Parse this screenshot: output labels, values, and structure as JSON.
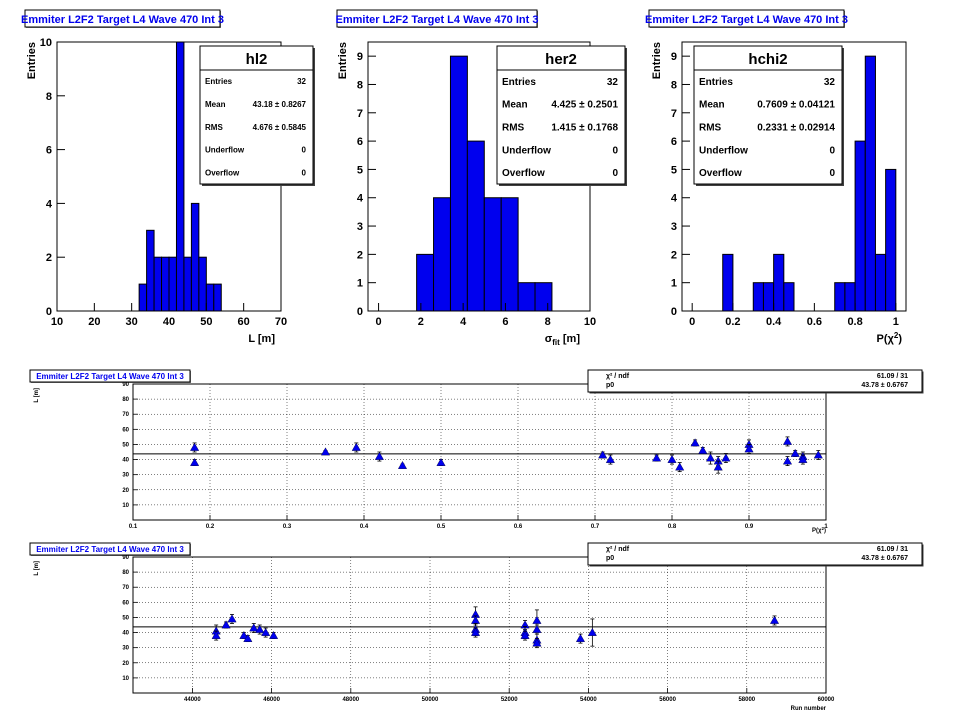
{
  "chart_data": [
    {
      "type": "bar",
      "panel_title": "Emmiter L2F2 Target L4 Wave 470 Int 3",
      "stats": {
        "name": "hl2",
        "rows": [
          {
            "label": "Entries",
            "value": "32"
          },
          {
            "label": "Mean",
            "value": "43.18 ± 0.8267"
          },
          {
            "label": "RMS",
            "value": "4.676 ± 0.5845"
          },
          {
            "label": "Underflow",
            "value": "0"
          },
          {
            "label": "Overflow",
            "value": "0"
          }
        ]
      },
      "xlabel": "L [m]",
      "ylabel": "Entries",
      "xlim": [
        10,
        70
      ],
      "ylim": [
        0,
        10
      ],
      "xticks": [
        "10",
        "20",
        "30",
        "40",
        "50",
        "60",
        "70"
      ],
      "yticks": [
        "0",
        "2",
        "4",
        "6",
        "8",
        "10"
      ],
      "bin_width": 2,
      "bins": [
        {
          "x": 32,
          "count": 1
        },
        {
          "x": 34,
          "count": 3
        },
        {
          "x": 36,
          "count": 2
        },
        {
          "x": 38,
          "count": 2
        },
        {
          "x": 40,
          "count": 2
        },
        {
          "x": 42,
          "count": 10
        },
        {
          "x": 44,
          "count": 2
        },
        {
          "x": 46,
          "count": 4
        },
        {
          "x": 48,
          "count": 2
        },
        {
          "x": 50,
          "count": 1
        },
        {
          "x": 52,
          "count": 1
        }
      ]
    },
    {
      "type": "bar",
      "panel_title": "Emmiter L2F2 Target L4 Wave 470 Int 3",
      "stats": {
        "name": "her2",
        "rows": [
          {
            "label": "Entries",
            "value": "32"
          },
          {
            "label": "Mean",
            "value": "4.425 ± 0.2501"
          },
          {
            "label": "RMS",
            "value": "1.415 ± 0.1768"
          },
          {
            "label": "Underflow",
            "value": "0"
          },
          {
            "label": "Overflow",
            "value": "0"
          }
        ]
      },
      "xlabel": "σfit [m]",
      "ylabel": "Entries",
      "xlim": [
        -0.5,
        10
      ],
      "ylim": [
        0,
        9.5
      ],
      "xticks": [
        "0",
        "2",
        "4",
        "6",
        "8",
        "10"
      ],
      "yticks": [
        "0",
        "1",
        "2",
        "3",
        "4",
        "5",
        "6",
        "7",
        "8",
        "9"
      ],
      "bin_width": 0.8,
      "bins": [
        {
          "x": 1.8,
          "count": 2
        },
        {
          "x": 2.6,
          "count": 4
        },
        {
          "x": 3.4,
          "count": 9
        },
        {
          "x": 4.2,
          "count": 6
        },
        {
          "x": 5.0,
          "count": 4
        },
        {
          "x": 5.8,
          "count": 4
        },
        {
          "x": 6.6,
          "count": 1
        },
        {
          "x": 7.4,
          "count": 1
        }
      ]
    },
    {
      "type": "bar",
      "panel_title": "Emmiter L2F2 Target L4 Wave 470 Int 3",
      "stats": {
        "name": "hchi2",
        "rows": [
          {
            "label": "Entries",
            "value": "32"
          },
          {
            "label": "Mean",
            "value": "0.7609 ± 0.04121"
          },
          {
            "label": "RMS",
            "value": "0.2331 ± 0.02914"
          },
          {
            "label": "Underflow",
            "value": "0"
          },
          {
            "label": "Overflow",
            "value": "0"
          }
        ]
      },
      "xlabel": "P(χ²)",
      "ylabel": "Entries",
      "xlim": [
        -0.05,
        1.05
      ],
      "ylim": [
        0,
        9.5
      ],
      "xticks": [
        "0",
        "0.2",
        "0.4",
        "0.6",
        "0.8",
        "1"
      ],
      "yticks": [
        "0",
        "1",
        "2",
        "3",
        "4",
        "5",
        "6",
        "7",
        "8",
        "9"
      ],
      "bin_width": 0.05,
      "bins": [
        {
          "x": 0.15,
          "count": 2
        },
        {
          "x": 0.3,
          "count": 1
        },
        {
          "x": 0.35,
          "count": 1
        },
        {
          "x": 0.4,
          "count": 2
        },
        {
          "x": 0.45,
          "count": 1
        },
        {
          "x": 0.7,
          "count": 1
        },
        {
          "x": 0.75,
          "count": 1
        },
        {
          "x": 0.8,
          "count": 6
        },
        {
          "x": 0.85,
          "count": 9
        },
        {
          "x": 0.9,
          "count": 2
        },
        {
          "x": 0.95,
          "count": 5
        }
      ]
    },
    {
      "type": "scatter",
      "panel_title": "Emmiter L2F2 Target L4 Wave 470 Int 3",
      "fit": {
        "rows": [
          {
            "label": "χ² / ndf",
            "value": "61.09 / 31"
          },
          {
            "label": "p0",
            "value": "43.78 ± 0.6767"
          }
        ],
        "p0": 43.78
      },
      "xlabel": "P(χ²)",
      "ylabel": "L [m]",
      "xlim": [
        0.1,
        1.0
      ],
      "ylim": [
        0,
        90
      ],
      "grid": true,
      "xticks": [
        {
          "v": 0.1,
          "t": "0.1"
        },
        {
          "v": 0.2,
          "t": "0.2"
        },
        {
          "v": 0.3,
          "t": "0.3"
        },
        {
          "v": 0.4,
          "t": "0.4"
        },
        {
          "v": 0.5,
          "t": "0.5"
        },
        {
          "v": 0.6,
          "t": "0.6"
        },
        {
          "v": 0.7,
          "t": "0.7"
        },
        {
          "v": 0.8,
          "t": "0.8"
        },
        {
          "v": 0.9,
          "t": "0.9"
        },
        {
          "v": 1.0,
          "t": "1"
        }
      ],
      "yticks": [
        {
          "v": 10,
          "t": "10"
        },
        {
          "v": 20,
          "t": "20"
        },
        {
          "v": 30,
          "t": "30"
        },
        {
          "v": 40,
          "t": "40"
        },
        {
          "v": 50,
          "t": "50"
        },
        {
          "v": 60,
          "t": "60"
        },
        {
          "v": 70,
          "t": "70"
        },
        {
          "v": 80,
          "t": "80"
        },
        {
          "v": 90,
          "t": "90"
        }
      ],
      "points": [
        {
          "x": 0.18,
          "y": 48,
          "err": 3
        },
        {
          "x": 0.18,
          "y": 38,
          "err": 2
        },
        {
          "x": 0.35,
          "y": 45,
          "err": 1
        },
        {
          "x": 0.39,
          "y": 48,
          "err": 3
        },
        {
          "x": 0.42,
          "y": 42,
          "err": 3
        },
        {
          "x": 0.45,
          "y": 36,
          "err": 1
        },
        {
          "x": 0.5,
          "y": 38,
          "err": 2
        },
        {
          "x": 0.71,
          "y": 43,
          "err": 2
        },
        {
          "x": 0.72,
          "y": 40,
          "err": 3
        },
        {
          "x": 0.78,
          "y": 41,
          "err": 2
        },
        {
          "x": 0.8,
          "y": 40,
          "err": 3
        },
        {
          "x": 0.81,
          "y": 35,
          "err": 3
        },
        {
          "x": 0.83,
          "y": 51,
          "err": 2
        },
        {
          "x": 0.84,
          "y": 46,
          "err": 2
        },
        {
          "x": 0.85,
          "y": 41,
          "err": 4
        },
        {
          "x": 0.86,
          "y": 39,
          "err": 3
        },
        {
          "x": 0.86,
          "y": 35,
          "err": 4
        },
        {
          "x": 0.87,
          "y": 41,
          "err": 3
        },
        {
          "x": 0.9,
          "y": 50,
          "err": 3
        },
        {
          "x": 0.9,
          "y": 47,
          "err": 3
        },
        {
          "x": 0.95,
          "y": 52,
          "err": 3
        },
        {
          "x": 0.95,
          "y": 39,
          "err": 3
        },
        {
          "x": 0.96,
          "y": 44,
          "err": 2
        },
        {
          "x": 0.97,
          "y": 42,
          "err": 3
        },
        {
          "x": 0.97,
          "y": 40,
          "err": 3
        },
        {
          "x": 0.99,
          "y": 43,
          "err": 3
        }
      ]
    },
    {
      "type": "scatter",
      "panel_title": "Emmiter L2F2 Target L4 Wave 470 Int 3",
      "fit": {
        "rows": [
          {
            "label": "χ² / ndf",
            "value": "61.09 / 31"
          },
          {
            "label": "p0",
            "value": "43.78 ± 0.6767"
          }
        ],
        "p0": 43.78
      },
      "xlabel": "Run number",
      "ylabel": "L [m]",
      "xlim": [
        42500,
        60000
      ],
      "ylim": [
        0,
        90
      ],
      "grid": true,
      "xticks": [
        {
          "v": 44000,
          "t": "44000"
        },
        {
          "v": 46000,
          "t": "46000"
        },
        {
          "v": 48000,
          "t": "48000"
        },
        {
          "v": 50000,
          "t": "50000"
        },
        {
          "v": 52000,
          "t": "52000"
        },
        {
          "v": 54000,
          "t": "54000"
        },
        {
          "v": 56000,
          "t": "56000"
        },
        {
          "v": 58000,
          "t": "58000"
        },
        {
          "v": 60000,
          "t": "60000"
        }
      ],
      "yticks": [
        {
          "v": 10,
          "t": "10"
        },
        {
          "v": 20,
          "t": "20"
        },
        {
          "v": 30,
          "t": "30"
        },
        {
          "v": 40,
          "t": "40"
        },
        {
          "v": 50,
          "t": "50"
        },
        {
          "v": 60,
          "t": "60"
        },
        {
          "v": 70,
          "t": "70"
        },
        {
          "v": 80,
          "t": "80"
        },
        {
          "v": 90,
          "t": "90"
        }
      ],
      "points": [
        {
          "x": 44600,
          "y": 41,
          "err": 4
        },
        {
          "x": 44600,
          "y": 38,
          "err": 3
        },
        {
          "x": 44850,
          "y": 45,
          "err": 2
        },
        {
          "x": 45000,
          "y": 49,
          "err": 3
        },
        {
          "x": 45300,
          "y": 38,
          "err": 2
        },
        {
          "x": 45400,
          "y": 36,
          "err": 2
        },
        {
          "x": 45550,
          "y": 43,
          "err": 3
        },
        {
          "x": 45700,
          "y": 42,
          "err": 3
        },
        {
          "x": 45850,
          "y": 40,
          "err": 3
        },
        {
          "x": 46050,
          "y": 38,
          "err": 2
        },
        {
          "x": 51150,
          "y": 52,
          "err": 5
        },
        {
          "x": 51150,
          "y": 48,
          "err": 3
        },
        {
          "x": 51150,
          "y": 42,
          "err": 4
        },
        {
          "x": 51150,
          "y": 40,
          "err": 3
        },
        {
          "x": 52400,
          "y": 45,
          "err": 3
        },
        {
          "x": 52400,
          "y": 40,
          "err": 4
        },
        {
          "x": 52400,
          "y": 38,
          "err": 3
        },
        {
          "x": 52700,
          "y": 48,
          "err": 7
        },
        {
          "x": 52700,
          "y": 42,
          "err": 3
        },
        {
          "x": 52700,
          "y": 35,
          "err": 4
        },
        {
          "x": 52700,
          "y": 33,
          "err": 3
        },
        {
          "x": 53800,
          "y": 36,
          "err": 3
        },
        {
          "x": 54100,
          "y": 40,
          "err": 9
        },
        {
          "x": 58700,
          "y": 48,
          "err": 3
        }
      ]
    }
  ]
}
